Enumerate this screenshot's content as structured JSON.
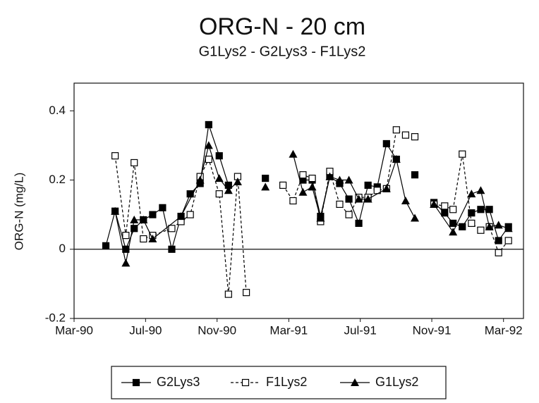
{
  "chart_data": {
    "type": "line",
    "title": "ORG-N - 20 cm",
    "subtitle": "G1Lys2 - G2Lys3 - F1Lys2",
    "y_label": "ORG-N (mg/L)",
    "xlim": [
      1990.167,
      1992.26
    ],
    "xticks": [
      {
        "value": 1990.167,
        "label": "Mar-90"
      },
      {
        "value": 1990.5,
        "label": "Jul-90"
      },
      {
        "value": 1990.833,
        "label": "Nov-90"
      },
      {
        "value": 1991.167,
        "label": "Mar-91"
      },
      {
        "value": 1991.5,
        "label": "Jul-91"
      },
      {
        "value": 1991.833,
        "label": "Nov-91"
      },
      {
        "value": 1992.167,
        "label": "Mar-92"
      }
    ],
    "ylim": [
      -0.2,
      0.48
    ],
    "yticks": [
      {
        "value": -0.2,
        "label": "-0.2"
      },
      0,
      {
        "value": 0.2,
        "label": "0.2"
      },
      {
        "value": 0.4,
        "label": "0.4"
      }
    ],
    "hline": 0,
    "series": [
      {
        "name": "G2Lys3",
        "color": "#000000",
        "marker": "square-filled",
        "dashed": false,
        "x": [
          1990.315,
          1990.358,
          1990.408,
          1990.447,
          1990.49,
          1990.533,
          1990.579,
          1990.622,
          1990.665,
          1990.708,
          1990.754,
          1990.794,
          1990.843,
          1990.886,
          null,
          1991.058,
          null,
          1991.233,
          1991.276,
          1991.315,
          1991.358,
          1991.404,
          1991.447,
          1991.493,
          1991.536,
          1991.579,
          1991.622,
          1991.668,
          null,
          1991.754,
          null,
          1991.843,
          1991.893,
          1991.932,
          1991.975,
          1992.018,
          1992.061,
          1992.101,
          1992.144,
          1992.19
        ],
        "values": [
          0.01,
          0.11,
          0.0,
          0.06,
          0.085,
          0.1,
          0.12,
          0.0,
          0.095,
          0.16,
          0.19,
          0.36,
          0.27,
          0.185,
          null,
          0.205,
          null,
          0.2,
          0.2,
          0.095,
          0.21,
          0.19,
          0.145,
          0.075,
          0.185,
          0.18,
          0.305,
          0.26,
          null,
          0.215,
          null,
          0.135,
          0.105,
          0.075,
          0.065,
          0.105,
          0.115,
          0.115,
          0.025,
          0.065
        ]
      },
      {
        "name": "F1Lys2",
        "color": "#000000",
        "marker": "square-open",
        "dashed": true,
        "x": [
          1990.358,
          1990.408,
          1990.447,
          1990.49,
          1990.533,
          1990.622,
          1990.665,
          1990.708,
          1990.754,
          1990.794,
          1990.843,
          1990.886,
          1990.929,
          1990.969,
          null,
          1991.14,
          1991.187,
          1991.233,
          1991.276,
          1991.315,
          1991.358,
          1991.404,
          1991.447,
          1991.493,
          1991.536,
          1991.579,
          1991.622,
          1991.668,
          1991.711,
          1991.754,
          null,
          1991.843,
          1991.893,
          1991.932,
          1991.975,
          1992.018,
          1992.061,
          1992.101,
          1992.144,
          1992.19
        ],
        "values": [
          0.27,
          0.04,
          0.25,
          0.03,
          0.04,
          0.06,
          0.08,
          0.1,
          0.21,
          0.26,
          0.16,
          -0.13,
          0.21,
          -0.125,
          null,
          0.185,
          0.14,
          0.215,
          0.205,
          0.08,
          0.225,
          0.13,
          0.1,
          0.15,
          0.15,
          0.17,
          0.175,
          0.345,
          0.33,
          0.325,
          null,
          0.13,
          0.125,
          0.115,
          0.275,
          0.075,
          0.055,
          0.065,
          -0.01,
          0.025
        ]
      },
      {
        "name": "G1Lys2",
        "color": "#000000",
        "marker": "triangle",
        "dashed": false,
        "x": [
          1990.358,
          1990.408,
          1990.447,
          1990.49,
          1990.533,
          1990.665,
          1990.754,
          1990.794,
          1990.843,
          1990.886,
          1990.929,
          null,
          1991.058,
          null,
          1991.187,
          1991.233,
          1991.276,
          1991.315,
          1991.358,
          1991.404,
          1991.447,
          1991.493,
          1991.536,
          1991.622,
          1991.668,
          1991.711,
          1991.754,
          null,
          1991.843,
          1991.932,
          1992.018,
          1992.061,
          1992.101,
          1992.144,
          1992.19
        ],
        "values": [
          0.11,
          -0.04,
          0.085,
          0.085,
          0.03,
          0.095,
          0.2,
          0.3,
          0.205,
          0.17,
          0.195,
          null,
          0.18,
          null,
          0.275,
          0.165,
          0.18,
          0.09,
          0.21,
          0.2,
          0.2,
          0.145,
          0.145,
          0.175,
          0.26,
          0.14,
          0.09,
          null,
          0.13,
          0.05,
          0.16,
          0.17,
          0.065,
          0.07,
          0.06
        ]
      }
    ]
  }
}
